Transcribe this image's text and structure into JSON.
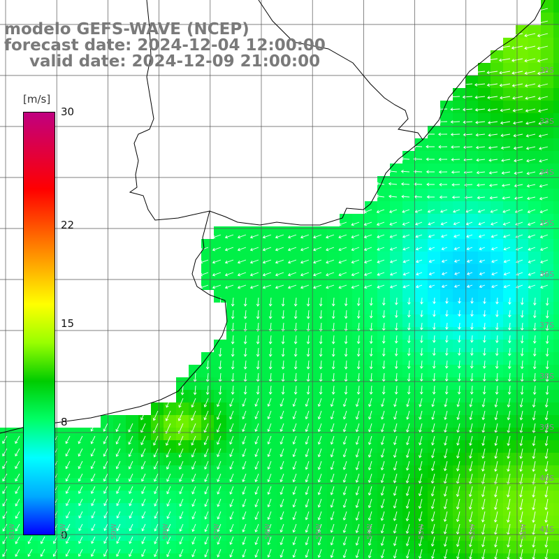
{
  "title": {
    "model": "modelo GEFS-WAVE (NCEP)",
    "forecast": "forecast date: 2024-12-04 12:00:00",
    "valid": "valid date: 2024-12-09 21:00:00"
  },
  "colorbar": {
    "unit": "[m/s]",
    "ticks": [
      "30",
      "22",
      "15",
      "8",
      "0"
    ],
    "tick_values": [
      30,
      22,
      15,
      8,
      0
    ],
    "range": [
      0,
      30
    ],
    "colors": [
      "#0000ff",
      "#00aaff",
      "#00ffff",
      "#00ff66",
      "#00cc00",
      "#99ff00",
      "#ffff00",
      "#ffaa00",
      "#ff5500",
      "#ff0000",
      "#e00040",
      "#c00080"
    ]
  },
  "lat_labels": [
    "32S",
    "33S",
    "34S",
    "35S",
    "36S",
    "37S",
    "38S",
    "39S",
    "40S",
    "41S"
  ],
  "lon_labels": [
    "61W",
    "60W",
    "59W",
    "58W",
    "57W",
    "56W",
    "55W",
    "54W",
    "53W",
    "52W",
    "51W"
  ],
  "colors": {
    "land": "#ffffff",
    "coast": "#000000",
    "grid": "#555555",
    "title": "#7a7a7a",
    "arrow": "#ffffff"
  }
}
